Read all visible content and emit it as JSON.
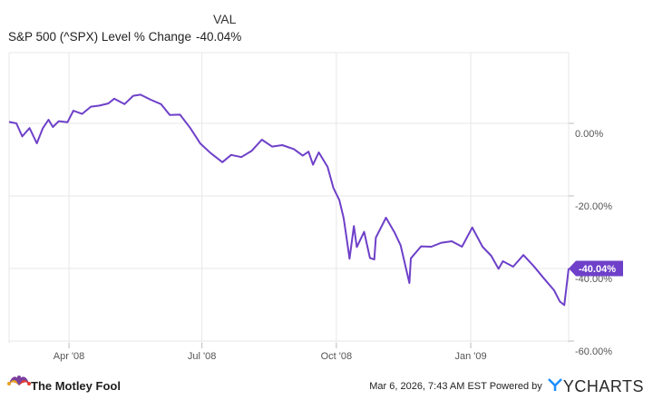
{
  "legend": {
    "header": "VAL",
    "series_label": "S&P 500 (^SPX) Level % Change",
    "value": "-40.04%"
  },
  "footer": {
    "brand": "The Motley Fool",
    "timestamp": "Mar 6, 2026, 7:43 AM EST Powered by",
    "provider": "YCHARTS"
  },
  "colors": {
    "series": "#6e40c9",
    "grid": "#e7e7e7",
    "axis_text": "#555555",
    "ycharts_accent": "#1e90ff"
  },
  "chart_data": {
    "type": "line",
    "title": "",
    "x_tick_labels": [
      "Apr '08",
      "Jul '08",
      "Oct '08",
      "Jan '09"
    ],
    "x_tick_dates": [
      "2008-04-01",
      "2008-07-01",
      "2008-10-01",
      "2009-01-01"
    ],
    "y_tick_labels": [
      "0.00%",
      "-20.00%",
      "-40.00%",
      "-60.00%"
    ],
    "y_ticks": [
      0,
      -20,
      -40,
      -60
    ],
    "ylim": [
      -60.5,
      19.5
    ],
    "xlim": [
      "2008-02-20",
      "2009-03-09"
    ],
    "grid": true,
    "series": [
      {
        "name": "S&P 500 (^SPX) Level % Change",
        "end_label": "-40.04%",
        "dates": [
          "2008-02-20",
          "2008-02-25",
          "2008-02-29",
          "2008-03-05",
          "2008-03-10",
          "2008-03-14",
          "2008-03-18",
          "2008-03-21",
          "2008-03-25",
          "2008-03-31",
          "2008-04-04",
          "2008-04-10",
          "2008-04-16",
          "2008-04-22",
          "2008-04-28",
          "2008-05-02",
          "2008-05-09",
          "2008-05-15",
          "2008-05-20",
          "2008-05-27",
          "2008-06-03",
          "2008-06-09",
          "2008-06-16",
          "2008-06-23",
          "2008-06-30",
          "2008-07-07",
          "2008-07-15",
          "2008-07-21",
          "2008-07-28",
          "2008-08-04",
          "2008-08-11",
          "2008-08-18",
          "2008-08-25",
          "2008-09-02",
          "2008-09-08",
          "2008-09-12",
          "2008-09-15",
          "2008-09-19",
          "2008-09-25",
          "2008-09-29",
          "2008-10-03",
          "2008-10-06",
          "2008-10-08",
          "2008-10-10",
          "2008-10-13",
          "2008-10-15",
          "2008-10-20",
          "2008-10-24",
          "2008-10-27",
          "2008-10-28",
          "2008-11-04",
          "2008-11-10",
          "2008-11-14",
          "2008-11-20",
          "2008-11-21",
          "2008-11-28",
          "2008-12-05",
          "2008-12-12",
          "2008-12-19",
          "2008-12-26",
          "2009-01-02",
          "2009-01-09",
          "2009-01-15",
          "2009-01-20",
          "2009-01-23",
          "2009-01-30",
          "2009-02-06",
          "2009-02-13",
          "2009-02-20",
          "2009-02-27",
          "2009-03-03",
          "2009-03-06",
          "2009-03-09"
        ],
        "values": [
          0.4,
          0.0,
          -3.6,
          -1.3,
          -5.5,
          -1.4,
          1.0,
          -1.0,
          0.6,
          0.3,
          3.5,
          2.6,
          4.6,
          4.9,
          5.5,
          6.8,
          5.3,
          7.6,
          7.9,
          6.5,
          5.3,
          2.3,
          2.4,
          -1.3,
          -5.6,
          -8.2,
          -10.7,
          -8.7,
          -9.3,
          -7.6,
          -4.5,
          -6.4,
          -6.0,
          -7.1,
          -8.9,
          -7.8,
          -11.4,
          -8.0,
          -12.0,
          -17.8,
          -21.1,
          -26.1,
          -31.5,
          -37.3,
          -28.3,
          -34.1,
          -29.9,
          -37.1,
          -37.5,
          -31.5,
          -26.0,
          -30.2,
          -33.6,
          -44.0,
          -37.2,
          -33.9,
          -34.0,
          -32.9,
          -32.5,
          -34.0,
          -28.7,
          -34.0,
          -36.5,
          -40.1,
          -38.0,
          -39.5,
          -36.3,
          -39.3,
          -42.7,
          -46.0,
          -49.1,
          -50.1,
          -40.0
        ]
      }
    ]
  }
}
